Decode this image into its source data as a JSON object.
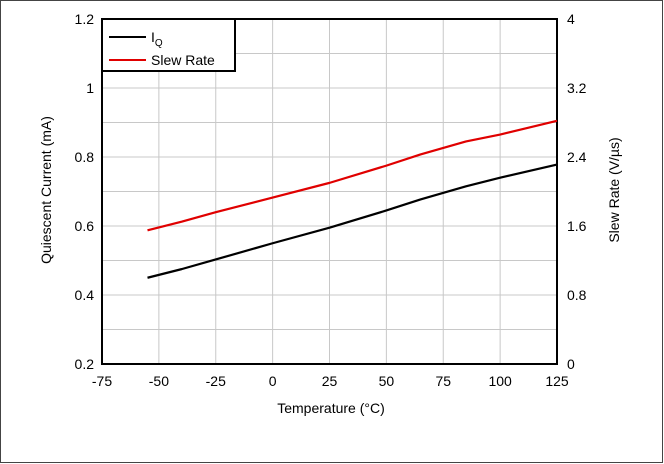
{
  "chart_data": {
    "type": "line",
    "xlabel": "Temperature (°C)",
    "ylabel_left": "Quiescent Current (mA)",
    "ylabel_right": "Slew Rate (V/µs)",
    "xlim": [
      -75,
      125
    ],
    "ylim_left": [
      0.2,
      1.2
    ],
    "ylim_right": [
      0,
      4
    ],
    "x_ticks": [
      "-75",
      "-50",
      "-25",
      "0",
      "25",
      "50",
      "75",
      "100",
      "125"
    ],
    "y_left_ticks": [
      "0.2",
      "0.4",
      "0.6",
      "0.8",
      "1",
      "1.2"
    ],
    "y_right_ticks": [
      "0",
      "0.8",
      "1.6",
      "2.4",
      "3.2",
      "4"
    ],
    "grid": true,
    "legend_position": "top-left",
    "series": [
      {
        "name": "IQ",
        "name_main": "I",
        "name_sub": "Q",
        "axis": "left",
        "color": "#000000",
        "x": [
          -55,
          -40,
          -25,
          0,
          25,
          50,
          65,
          85,
          100,
          125
        ],
        "values": [
          0.45,
          0.475,
          0.503,
          0.55,
          0.595,
          0.645,
          0.677,
          0.715,
          0.74,
          0.778
        ]
      },
      {
        "name": "Slew Rate",
        "axis": "right",
        "color": "#e00000",
        "x": [
          -55,
          -40,
          -25,
          0,
          25,
          50,
          65,
          85,
          100,
          125
        ],
        "values": [
          1.55,
          1.65,
          1.76,
          1.93,
          2.1,
          2.3,
          2.43,
          2.58,
          2.66,
          2.82
        ]
      }
    ]
  }
}
